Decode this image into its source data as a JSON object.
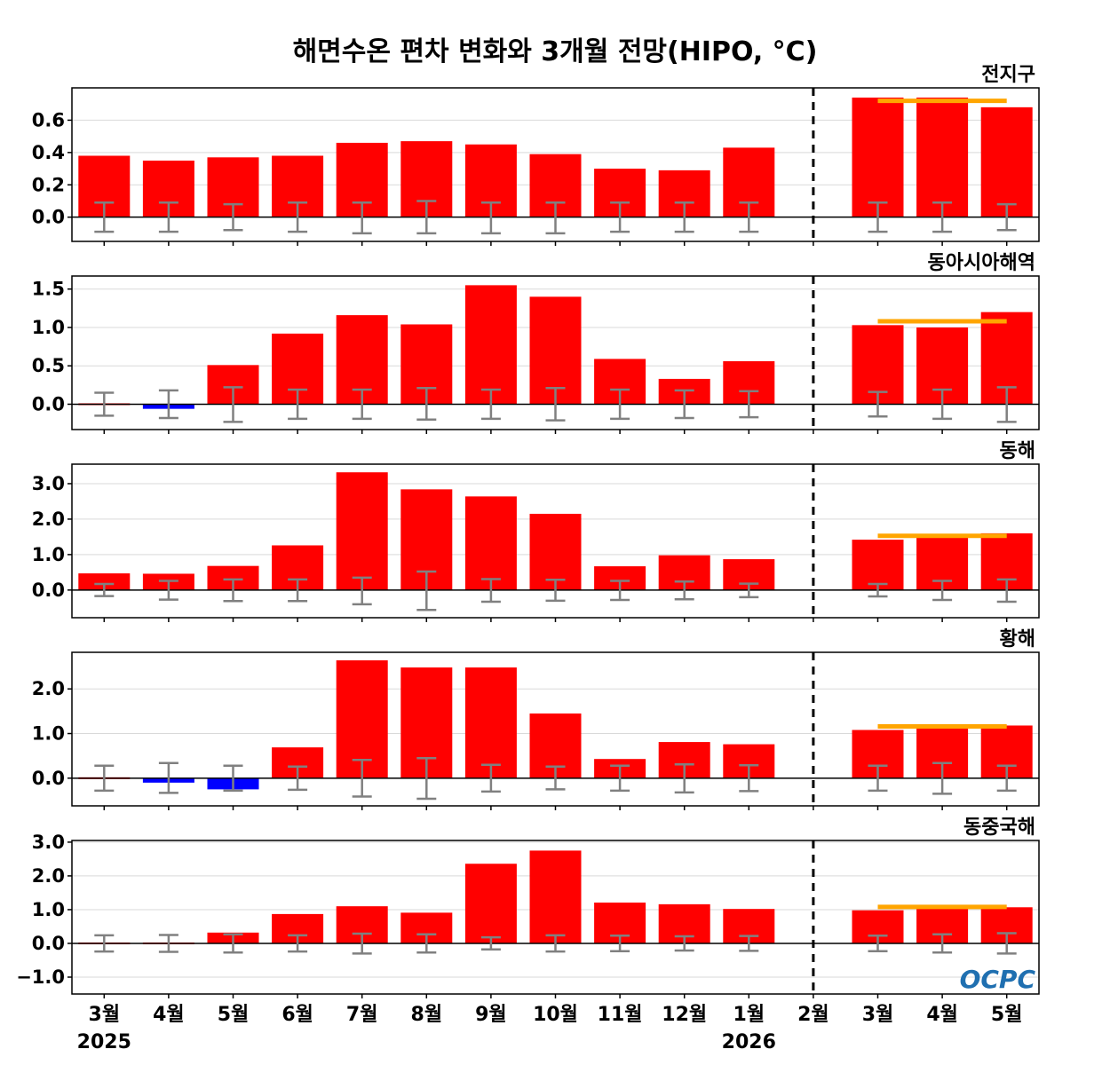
{
  "title": "해면수온 편차 변화와 3개월 전망(HIPO, °C)",
  "colors": {
    "positive": "#ff0000",
    "negative": "#0000ff",
    "forecast_mean": "#ffa500",
    "error_bar": "#808080",
    "divider": "#000000",
    "logo": "#1f6fb0"
  },
  "logo_text": "OCPC",
  "chart_data": [
    {
      "type": "bar",
      "panel_title": "전지구",
      "categories": [
        "3월",
        "4월",
        "5월",
        "6월",
        "7월",
        "8월",
        "9월",
        "10월",
        "11월",
        "12월",
        "1월",
        "2월",
        "3월",
        "4월",
        "5월"
      ],
      "values": [
        0.38,
        0.35,
        0.37,
        0.38,
        0.46,
        0.47,
        0.45,
        0.39,
        0.3,
        0.29,
        0.43,
        0,
        0.74,
        0.74,
        0.68
      ],
      "error_low": [
        -0.09,
        -0.09,
        -0.08,
        -0.09,
        -0.1,
        -0.1,
        -0.1,
        -0.1,
        -0.09,
        -0.09,
        -0.09,
        null,
        -0.09,
        -0.09,
        -0.08
      ],
      "error_high": [
        0.09,
        0.09,
        0.08,
        0.09,
        0.09,
        0.1,
        0.09,
        0.09,
        0.09,
        0.09,
        0.09,
        null,
        0.09,
        0.09,
        0.08
      ],
      "forecast_mean": 0.72,
      "ylim": [
        -0.15,
        0.8
      ],
      "yticks": [
        0.0,
        0.2,
        0.4,
        0.6
      ],
      "ytick_labels": [
        "0.0",
        "0.2",
        "0.4",
        "0.6"
      ]
    },
    {
      "type": "bar",
      "panel_title": "동아시아해역",
      "categories": [
        "3월",
        "4월",
        "5월",
        "6월",
        "7월",
        "8월",
        "9월",
        "10월",
        "11월",
        "12월",
        "1월",
        "2월",
        "3월",
        "4월",
        "5월"
      ],
      "values": [
        0.0,
        -0.06,
        0.51,
        0.92,
        1.16,
        1.04,
        1.55,
        1.4,
        0.59,
        0.33,
        0.56,
        0,
        1.03,
        1.0,
        1.2
      ],
      "error_low": [
        -0.15,
        -0.18,
        -0.23,
        -0.19,
        -0.19,
        -0.2,
        -0.19,
        -0.21,
        -0.19,
        -0.18,
        -0.17,
        null,
        -0.16,
        -0.19,
        -0.23
      ],
      "error_high": [
        0.15,
        0.18,
        0.22,
        0.19,
        0.19,
        0.21,
        0.19,
        0.21,
        0.19,
        0.18,
        0.17,
        null,
        0.16,
        0.19,
        0.22
      ],
      "forecast_mean": 1.08,
      "ylim": [
        -0.33,
        1.67
      ],
      "yticks": [
        0.0,
        0.5,
        1.0,
        1.5
      ],
      "ytick_labels": [
        "0.0",
        "0.5",
        "1.0",
        "1.5"
      ]
    },
    {
      "type": "bar",
      "panel_title": "동해",
      "categories": [
        "3월",
        "4월",
        "5월",
        "6월",
        "7월",
        "8월",
        "9월",
        "10월",
        "11월",
        "12월",
        "1월",
        "2월",
        "3월",
        "4월",
        "5월"
      ],
      "values": [
        0.47,
        0.46,
        0.68,
        1.26,
        3.32,
        2.84,
        2.64,
        2.15,
        0.67,
        0.98,
        0.87,
        0,
        1.42,
        1.57,
        1.6
      ],
      "error_low": [
        -0.17,
        -0.27,
        -0.31,
        -0.31,
        -0.4,
        -0.56,
        -0.33,
        -0.3,
        -0.28,
        -0.26,
        -0.2,
        null,
        -0.18,
        -0.28,
        -0.33
      ],
      "error_high": [
        0.17,
        0.26,
        0.3,
        0.3,
        0.35,
        0.52,
        0.31,
        0.29,
        0.26,
        0.24,
        0.18,
        null,
        0.17,
        0.26,
        0.3
      ],
      "forecast_mean": 1.53,
      "ylim": [
        -0.78,
        3.55
      ],
      "yticks": [
        0.0,
        1.0,
        2.0,
        3.0
      ],
      "ytick_labels": [
        "0.0",
        "1.0",
        "2.0",
        "3.0"
      ]
    },
    {
      "type": "bar",
      "panel_title": "황해",
      "categories": [
        "3월",
        "4월",
        "5월",
        "6월",
        "7월",
        "8월",
        "9월",
        "10월",
        "11월",
        "12월",
        "1월",
        "2월",
        "3월",
        "4월",
        "5월"
      ],
      "values": [
        0.03,
        -0.1,
        -0.25,
        0.69,
        2.64,
        2.48,
        2.48,
        1.45,
        0.43,
        0.81,
        0.76,
        0,
        1.08,
        1.18,
        1.18
      ],
      "error_low": [
        -0.28,
        -0.33,
        -0.28,
        -0.26,
        -0.41,
        -0.46,
        -0.3,
        -0.25,
        -0.28,
        -0.32,
        -0.29,
        null,
        -0.28,
        -0.35,
        -0.28
      ],
      "error_high": [
        0.28,
        0.34,
        0.28,
        0.26,
        0.41,
        0.45,
        0.3,
        0.26,
        0.28,
        0.31,
        0.29,
        null,
        0.28,
        0.34,
        0.28
      ],
      "forecast_mean": 1.16,
      "ylim": [
        -0.62,
        2.82
      ],
      "yticks": [
        0.0,
        1.0,
        2.0
      ],
      "ytick_labels": [
        "0.0",
        "1.0",
        "2.0"
      ]
    },
    {
      "type": "bar",
      "panel_title": "동중국해",
      "categories": [
        "3월",
        "4월",
        "5월",
        "6월",
        "7월",
        "8월",
        "9월",
        "10월",
        "11월",
        "12월",
        "1월",
        "2월",
        "3월",
        "4월",
        "5월"
      ],
      "values": [
        0.03,
        0.05,
        0.32,
        0.87,
        1.1,
        0.91,
        2.36,
        2.75,
        1.21,
        1.16,
        1.02,
        0,
        0.98,
        1.08,
        1.07
      ],
      "error_low": [
        -0.24,
        -0.25,
        -0.27,
        -0.24,
        -0.3,
        -0.27,
        -0.18,
        -0.24,
        -0.23,
        -0.21,
        -0.22,
        null,
        -0.23,
        -0.27,
        -0.3
      ],
      "error_high": [
        0.24,
        0.25,
        0.27,
        0.24,
        0.29,
        0.27,
        0.18,
        0.24,
        0.23,
        0.21,
        0.22,
        null,
        0.23,
        0.27,
        0.3
      ],
      "forecast_mean": 1.08,
      "ylim": [
        -1.5,
        3.05
      ],
      "yticks": [
        -1.0,
        0.0,
        1.0,
        2.0,
        3.0
      ],
      "ytick_labels": [
        "−1.0",
        "0.0",
        "1.0",
        "2.0",
        "3.0"
      ]
    }
  ],
  "x_axis": {
    "tick_labels": [
      "3월",
      "4월",
      "5월",
      "6월",
      "7월",
      "8월",
      "9월",
      "10월",
      "11월",
      "12월",
      "1월",
      "2월",
      "3월",
      "4월",
      "5월"
    ],
    "year_labels": [
      {
        "index": 0,
        "text": "2025"
      },
      {
        "index": 10,
        "text": "2026"
      }
    ]
  }
}
